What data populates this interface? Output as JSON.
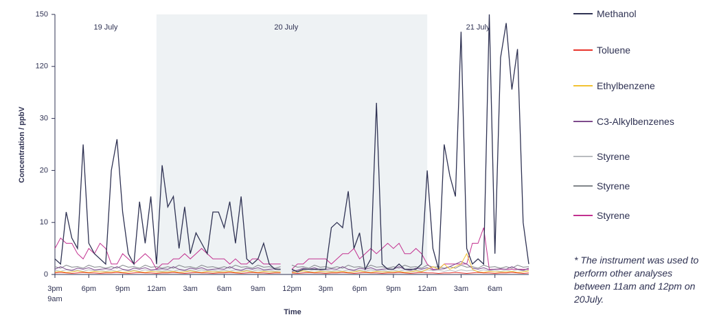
{
  "chart_data": {
    "type": "line",
    "y_label": "Concentration / ppbV",
    "x_label": "Time",
    "note": "* The instrument was used to perform other analyses between 11am and 12pm on 20July.",
    "shade": [
      9,
      33
    ],
    "shade_color": "#eef2f4",
    "annotations": [
      {
        "text": "19 July",
        "x": 4.5
      },
      {
        "text": "20 July",
        "x": 20.5
      },
      {
        "text": "21 July",
        "x": 37.5
      }
    ],
    "xlim": [
      0,
      42
    ],
    "xticks": [
      {
        "value": 0,
        "label": "3pm\n9am"
      },
      {
        "value": 3,
        "label": "6pm"
      },
      {
        "value": 6,
        "label": "9pm"
      },
      {
        "value": 9,
        "label": "12am"
      },
      {
        "value": 12,
        "label": "3am"
      },
      {
        "value": 15,
        "label": "6am"
      },
      {
        "value": 18,
        "label": "9am"
      },
      {
        "value": 21,
        "label": "12pm"
      },
      {
        "value": 24,
        "label": "3pm"
      },
      {
        "value": 27,
        "label": "6pm"
      },
      {
        "value": 30,
        "label": "9pm"
      },
      {
        "value": 33,
        "label": "12am"
      },
      {
        "value": 36,
        "label": "3am"
      },
      {
        "value": 39,
        "label": "6am"
      }
    ],
    "ylim": [
      0,
      150
    ],
    "yticks": [
      0,
      10,
      20,
      30,
      120,
      150
    ],
    "x": [
      0,
      0.5,
      1,
      1.5,
      2,
      2.5,
      3,
      3.5,
      4,
      4.5,
      5,
      5.5,
      6,
      6.5,
      7,
      7.5,
      8,
      8.5,
      9,
      9.5,
      10,
      10.5,
      11,
      11.5,
      12,
      12.5,
      13,
      13.5,
      14,
      14.5,
      15,
      15.5,
      16,
      16.5,
      17,
      17.5,
      18,
      18.5,
      19,
      19.5,
      20,
      20.5,
      21,
      21.5,
      22,
      22.5,
      23,
      23.5,
      24,
      24.5,
      25,
      25.5,
      26,
      26.5,
      27,
      27.5,
      28,
      28.5,
      29,
      29.5,
      30,
      30.5,
      31,
      31.5,
      32,
      32.5,
      33,
      33.5,
      34,
      34.5,
      35,
      35.5,
      36,
      36.5,
      37,
      37.5,
      38,
      38.5,
      39,
      39.5,
      40,
      40.5,
      41,
      41.5,
      42
    ],
    "series": [
      {
        "name": "Methanol",
        "color": "#2e3152",
        "values": [
          3,
          2,
          12,
          7,
          5,
          25,
          6,
          4,
          3,
          2,
          20,
          26,
          12,
          4,
          2,
          14,
          6,
          15,
          2,
          21,
          13,
          15,
          5,
          13,
          4,
          8,
          6,
          4,
          12,
          12,
          9,
          14,
          6,
          15,
          3,
          2,
          3,
          6,
          2,
          1,
          1,
          null,
          1,
          0.5,
          1,
          1,
          1,
          1,
          1,
          9,
          10,
          9,
          16,
          5,
          8,
          1,
          3,
          57,
          2,
          1,
          1,
          2,
          1,
          1,
          1,
          2,
          20,
          5,
          1,
          25,
          19,
          15,
          140,
          5,
          2,
          3,
          2,
          150,
          4,
          125,
          145,
          80,
          130,
          10,
          2
        ]
      },
      {
        "name": "Toluene",
        "color": "#e8332a",
        "values": [
          0.3,
          0.4,
          0.3,
          0.2,
          0.3,
          0.4,
          0.3,
          0.3,
          0.2,
          0.3,
          0.3,
          0.4,
          0.3,
          0.2,
          0.3,
          0.4,
          0.3,
          0.3,
          0.2,
          0.3,
          0.3,
          0.4,
          0.3,
          0.2,
          0.3,
          0.4,
          0.3,
          0.3,
          0.2,
          0.3,
          0.3,
          0.4,
          0.3,
          0.2,
          0.3,
          0.4,
          0.3,
          0.3,
          0.2,
          0.3,
          0.3,
          null,
          0.3,
          0.2,
          0.3,
          0.4,
          0.3,
          0.3,
          0.2,
          0.3,
          0.3,
          0.4,
          0.3,
          0.2,
          0.3,
          0.4,
          0.3,
          0.3,
          0.2,
          0.3,
          0.3,
          0.4,
          0.3,
          0.2,
          0.3,
          0.4,
          0.3,
          0.3,
          0.2,
          0.3,
          0.3,
          0.4,
          0.3,
          0.2,
          0.3,
          0.4,
          0.3,
          0.3,
          0.2,
          0.3,
          0.3,
          0.4,
          0.3,
          0.2,
          0.3
        ]
      },
      {
        "name": "Ethylbenzene",
        "color": "#f2c230",
        "values": [
          0.5,
          0.6,
          0.4,
          0.5,
          0.7,
          0.5,
          0.4,
          0.6,
          0.5,
          0.5,
          0.5,
          0.6,
          0.4,
          0.5,
          0.7,
          0.5,
          0.4,
          0.6,
          0.5,
          0.5,
          0.5,
          0.6,
          0.4,
          0.5,
          0.7,
          0.5,
          0.4,
          0.6,
          0.5,
          0.5,
          0.5,
          0.6,
          0.4,
          0.5,
          0.7,
          0.5,
          0.4,
          0.6,
          0.5,
          0.5,
          0.5,
          null,
          0.4,
          0.5,
          0.7,
          0.5,
          0.4,
          0.6,
          0.5,
          0.5,
          0.5,
          0.6,
          0.4,
          0.5,
          0.7,
          0.5,
          0.4,
          0.6,
          0.5,
          0.5,
          0.5,
          0.6,
          0.4,
          0.5,
          0.7,
          0.5,
          1,
          1.5,
          1,
          2,
          1,
          1.5,
          2,
          4,
          1,
          0.5,
          0.4,
          0.6,
          0.5,
          0.5,
          0.5,
          0.6,
          0.4,
          0.5,
          0.7
        ]
      },
      {
        "name": "C3-Alkylbenzenes",
        "color": "#7d4a8c",
        "values": [
          1,
          1.5,
          1,
          0.8,
          1.2,
          1,
          1.3,
          0.9,
          1,
          1.1,
          1,
          1.5,
          1,
          0.8,
          1.2,
          1,
          1.3,
          0.9,
          1,
          1.1,
          1,
          1.5,
          1,
          0.8,
          1.2,
          1,
          1.3,
          0.9,
          1,
          1.1,
          1,
          1.5,
          1,
          0.8,
          1.2,
          1,
          1.3,
          0.9,
          1,
          1.1,
          1,
          null,
          0.6,
          0.8,
          1.2,
          1,
          1.3,
          0.9,
          1,
          1.1,
          1,
          1.5,
          1,
          0.8,
          1.2,
          1,
          1.3,
          0.9,
          1,
          1.1,
          1,
          1.5,
          1,
          0.8,
          1.2,
          1,
          1.3,
          0.9,
          1,
          1.1,
          1.5,
          2,
          2.5,
          2,
          1.2,
          1,
          1.3,
          0.9,
          1,
          1.1,
          1,
          1.5,
          1,
          0.8,
          1.2
        ]
      },
      {
        "name": "Styrene",
        "color": "#b9bcc0",
        "values": [
          0.8,
          0.6,
          0.9,
          0.7,
          0.8,
          0.6,
          0.9,
          0.7,
          0.8,
          0.6,
          0.8,
          0.6,
          0.9,
          0.7,
          0.8,
          0.6,
          0.9,
          0.7,
          0.8,
          0.6,
          0.8,
          0.6,
          0.9,
          0.7,
          0.8,
          0.6,
          0.9,
          0.7,
          0.8,
          0.6,
          0.8,
          0.6,
          0.9,
          0.7,
          0.8,
          0.6,
          0.9,
          0.7,
          0.8,
          0.6,
          0.8,
          null,
          0.9,
          0.7,
          0.8,
          0.6,
          0.9,
          0.7,
          0.8,
          0.6,
          0.8,
          0.6,
          0.9,
          0.7,
          0.8,
          0.6,
          0.9,
          0.7,
          0.8,
          0.6,
          0.8,
          0.6,
          0.9,
          0.7,
          0.8,
          0.6,
          0.9,
          0.7,
          0.8,
          0.6,
          0.8,
          0.6,
          0.9,
          0.7,
          0.8,
          0.6,
          0.9,
          0.7,
          0.8,
          0.6,
          0.8,
          0.6,
          0.9,
          0.7,
          0.8
        ]
      },
      {
        "name": "Styrene",
        "color": "#808489",
        "values": [
          1.5,
          1.2,
          1.8,
          1.4,
          1.5,
          1.2,
          1.8,
          1.4,
          1.5,
          1.2,
          1.5,
          1.2,
          1.8,
          1.4,
          1.5,
          1.2,
          1.8,
          1.4,
          1.5,
          1.2,
          1.5,
          1.2,
          1.8,
          1.4,
          1.5,
          1.2,
          1.8,
          1.4,
          1.5,
          1.2,
          1.5,
          1.2,
          1.8,
          1.4,
          1.5,
          1.2,
          1.8,
          1.4,
          1.5,
          1.2,
          1.5,
          null,
          1.8,
          1.4,
          1.5,
          1.2,
          1.8,
          1.4,
          1.5,
          1.2,
          1.5,
          1.2,
          1.8,
          1.4,
          1.5,
          1.2,
          1.8,
          1.4,
          1.5,
          1.2,
          1.5,
          1.2,
          1.8,
          1.4,
          1.5,
          1.2,
          1.8,
          1.4,
          1.5,
          1.2,
          1.5,
          1.2,
          1.8,
          1.4,
          1.5,
          1.2,
          1.8,
          1.4,
          1.5,
          1.2,
          1.5,
          1.2,
          1.8,
          1.4,
          1.5
        ]
      },
      {
        "name": "Styrene",
        "color": "#c2308f",
        "values": [
          5,
          7,
          6,
          6,
          4,
          3,
          5,
          4,
          6,
          5,
          2,
          2,
          4,
          3,
          2,
          3,
          4,
          3,
          1,
          2,
          2,
          3,
          3,
          4,
          3,
          4,
          5,
          4,
          3,
          3,
          3,
          2,
          3,
          2,
          2,
          3,
          3,
          2,
          2,
          2,
          2,
          null,
          1,
          2,
          2,
          3,
          3,
          3,
          3,
          2,
          3,
          4,
          4,
          5,
          3,
          4,
          5,
          4,
          5,
          6,
          5,
          6,
          4,
          4,
          5,
          4,
          2,
          1,
          1,
          2,
          2,
          2,
          2,
          2,
          6,
          6,
          9,
          1,
          1,
          1,
          1,
          1,
          1,
          1,
          1
        ]
      }
    ]
  }
}
